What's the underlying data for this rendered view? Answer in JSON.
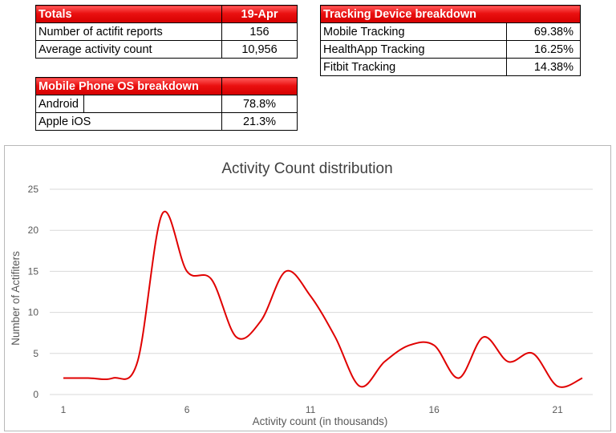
{
  "totals": {
    "header_label": "Totals",
    "header_date": "19-Apr",
    "rows": [
      {
        "label": "Number of actifit reports",
        "value": "156"
      },
      {
        "label": "Average activity count",
        "value": "10,956"
      }
    ]
  },
  "tracking": {
    "header_label": "Tracking Device breakdown",
    "rows": [
      {
        "label": "Mobile Tracking",
        "value": "69.38%"
      },
      {
        "label": "HealthApp Tracking",
        "value": "16.25%"
      },
      {
        "label": "Fitbit Tracking",
        "value": "14.38%"
      }
    ]
  },
  "os": {
    "header_label": "Mobile Phone OS breakdown",
    "rows": [
      {
        "label": "Android",
        "value": "78.8%"
      },
      {
        "label": "Apple iOS",
        "value": "21.3%"
      }
    ]
  },
  "chart_data": {
    "type": "line",
    "title": "Activity Count distribution",
    "xlabel": "Activity count (in thousands)",
    "ylabel": "Number of Actifiters",
    "xlim": [
      1,
      22
    ],
    "ylim": [
      0,
      25
    ],
    "xticks": [
      1,
      6,
      11,
      16,
      21
    ],
    "yticks": [
      0,
      5,
      10,
      15,
      20,
      25
    ],
    "grid": true,
    "smooth": true,
    "line_color": "#e00000",
    "x": [
      1,
      2,
      3,
      4,
      5,
      6,
      7,
      8,
      9,
      10,
      11,
      12,
      13,
      14,
      15,
      16,
      17,
      18,
      19,
      20,
      21,
      22
    ],
    "series": [
      {
        "values": [
          2,
          2,
          2,
          4,
          22,
          15,
          14,
          7,
          9,
          15,
          12,
          7,
          1,
          4,
          6,
          6,
          2,
          7,
          4,
          5,
          1,
          2
        ]
      }
    ]
  }
}
